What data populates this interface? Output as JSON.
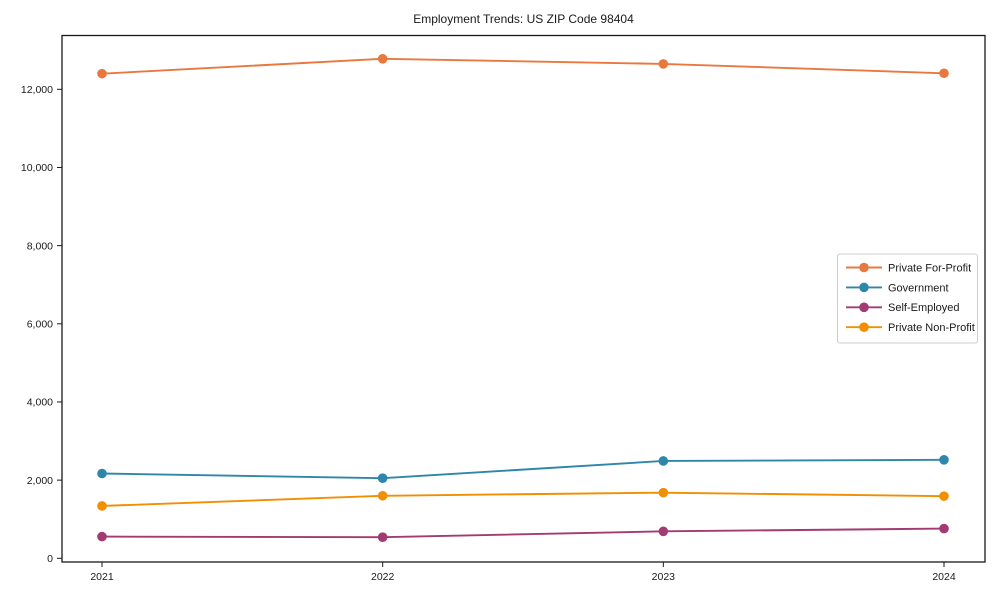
{
  "chart_data": {
    "type": "line",
    "title": "Employment Trends: US ZIP Code 98404",
    "xlabel": "",
    "ylabel": "",
    "categories": [
      "2021",
      "2022",
      "2023",
      "2024"
    ],
    "series": [
      {
        "name": "Private For-Profit",
        "color": "#E8793E",
        "values": [
          12400,
          12780,
          12650,
          12410
        ]
      },
      {
        "name": "Government",
        "color": "#2E86AB",
        "values": [
          2170,
          2050,
          2490,
          2520
        ]
      },
      {
        "name": "Self-Employed",
        "color": "#A23B72",
        "values": [
          555,
          540,
          690,
          760
        ]
      },
      {
        "name": "Private Non-Profit",
        "color": "#F18F01",
        "values": [
          1340,
          1600,
          1680,
          1590
        ]
      }
    ],
    "y_ticks": [
      0,
      2000,
      4000,
      6000,
      8000,
      10000,
      12000
    ],
    "y_tick_labels": [
      "0",
      "2,000",
      "4,000",
      "6,000",
      "8,000",
      "10,000",
      "12,000"
    ],
    "ylim": [
      0,
      13380
    ],
    "grid": false,
    "legend_position": "center-right",
    "marker": "circle",
    "background": "#ffffff",
    "axis_color": "#1a1a1a",
    "legend_border_color": "#cccccc"
  }
}
